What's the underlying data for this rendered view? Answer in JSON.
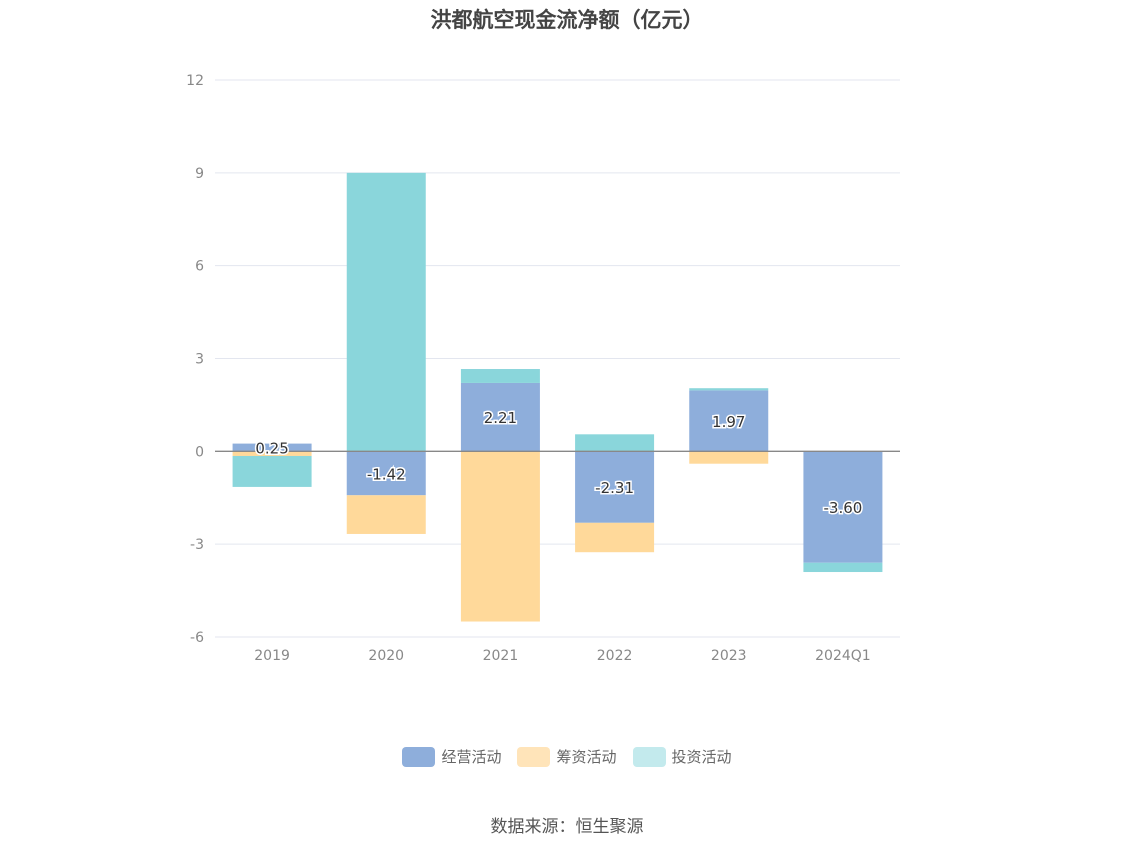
{
  "chart_data": {
    "type": "bar",
    "stacked": true,
    "title": "洪都航空现金流净额（亿元）",
    "categories": [
      "2019",
      "2020",
      "2021",
      "2022",
      "2023",
      "2024Q1"
    ],
    "series": [
      {
        "name": "经营活动",
        "color": "#8eaedb",
        "values": [
          0.25,
          -1.42,
          2.21,
          -2.31,
          1.97,
          -3.6
        ]
      },
      {
        "name": "筹资活动",
        "color": "#ffd99a",
        "values": [
          -0.15,
          -1.25,
          -5.5,
          -0.95,
          -0.4,
          0.0
        ]
      },
      {
        "name": "投资活动",
        "color": "#8ad6db",
        "values": [
          -1.0,
          9.0,
          0.45,
          0.55,
          0.07,
          -0.3
        ]
      }
    ],
    "data_labels": [
      "0.25",
      "-1.42",
      "2.21",
      "-2.31",
      "1.97",
      "-3.60"
    ],
    "y_ticks": [
      "12",
      "9",
      "6",
      "3",
      "0",
      "-3",
      "-6"
    ],
    "ylim": [
      -6,
      12
    ],
    "grid": true,
    "legend_position": "bottom"
  },
  "legend_swatch_colors": [
    "#8eaedb",
    "#ffe4b9",
    "#c3eaed"
  ],
  "source": "数据来源：恒生聚源"
}
